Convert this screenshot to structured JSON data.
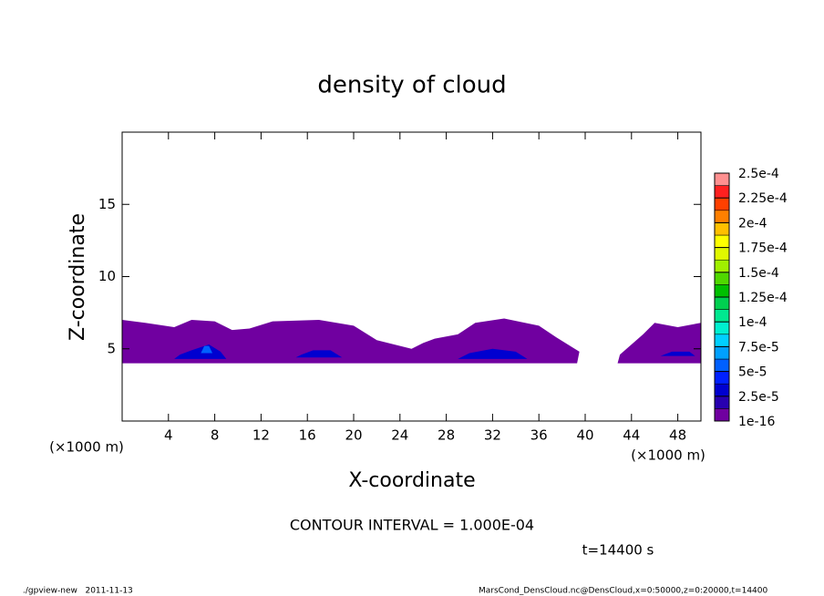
{
  "chart_data": {
    "type": "contour",
    "title": "density of cloud",
    "x_label": "X-coordinate",
    "y_label": "Z-coordinate",
    "x_unit": "(×1000 m)",
    "annotation": "CONTOUR INTERVAL = 1.000E-04",
    "time_label": "t=14400 s",
    "footer_left": "./gpview-new   2011-11-13",
    "footer_right": "MarsCond_DensCloud.nc@DensCloud,x=0:50000,z=0:20000,t=14400",
    "xlim": [
      0,
      50
    ],
    "ylim": [
      0,
      20
    ],
    "xticks": [
      4,
      8,
      12,
      16,
      20,
      24,
      28,
      32,
      36,
      40,
      44,
      48
    ],
    "yticks": [
      5,
      10,
      15
    ],
    "colorbar": {
      "ticks": [
        1e-16,
        {
          "value": 2.5e-05,
          "label": "2.5e-5"
        },
        {
          "value": 5e-05,
          "label": "5e-5"
        },
        {
          "value": 7.5e-05,
          "label": "7.5e-5"
        },
        {
          "value": 0.0001,
          "label": "1e-4"
        },
        {
          "value": 0.000125,
          "label": "1.25e-4"
        },
        {
          "value": 0.00015,
          "label": "1.5e-4"
        },
        {
          "value": 0.000175,
          "label": "1.75e-4"
        },
        {
          "value": 0.0002,
          "label": "2e-4"
        },
        {
          "value": 0.000225,
          "label": "2.25e-4"
        },
        {
          "value": 0.00025,
          "label": "2.5e-4"
        }
      ],
      "colors": [
        "#7000a0",
        "#2800b0",
        "#0000d0",
        "#0020ff",
        "#0060ff",
        "#00a0ff",
        "#00d0ff",
        "#00f0d0",
        "#00e890",
        "#00d050",
        "#00c000",
        "#50d800",
        "#a0f000",
        "#e0f800",
        "#ffff00",
        "#ffc000",
        "#ff8000",
        "#ff4000",
        "#ff2020",
        "#ff9090"
      ]
    },
    "regions": [
      {
        "level": 1e-16,
        "x": [
          0,
          39.3,
          39.5,
          37.5,
          36,
          33,
          30.5,
          29,
          27,
          26,
          25,
          22,
          20,
          17,
          13,
          11,
          9.5,
          8,
          6,
          4.5,
          2,
          0
        ],
        "z": [
          4,
          4,
          4.8,
          5.8,
          6.6,
          7.1,
          6.8,
          6,
          5.7,
          5.4,
          5,
          5.6,
          6.6,
          7,
          6.9,
          6.4,
          6.3,
          6.9,
          7,
          6.5,
          6.8,
          7
        ]
      },
      {
        "level": 1e-16,
        "x": [
          42.8,
          50,
          50,
          48,
          46,
          45,
          44,
          43
        ],
        "z": [
          4,
          4,
          6.8,
          6.5,
          6.8,
          6,
          5.3,
          4.6
        ]
      },
      {
        "level": 2.5e-05,
        "x": [
          4.5,
          9,
          8.5,
          7.5,
          6,
          5
        ],
        "z": [
          4.3,
          4.3,
          4.8,
          5.3,
          4.9,
          4.6
        ]
      },
      {
        "level": 2.5e-05,
        "x": [
          15,
          19,
          18,
          16.5,
          15.5
        ],
        "z": [
          4.4,
          4.4,
          4.9,
          4.9,
          4.6
        ]
      },
      {
        "level": 2.5e-05,
        "x": [
          29,
          35,
          34,
          32,
          30
        ],
        "z": [
          4.3,
          4.3,
          4.8,
          5,
          4.7
        ]
      },
      {
        "level": 2.5e-05,
        "x": [
          46.5,
          49.5,
          49,
          47.5
        ],
        "z": [
          4.5,
          4.5,
          4.8,
          4.8
        ]
      },
      {
        "level": 5e-05,
        "x": [
          6.8,
          7.8,
          7.5,
          7.1
        ],
        "z": [
          4.7,
          4.7,
          5.2,
          5.2
        ]
      }
    ]
  }
}
